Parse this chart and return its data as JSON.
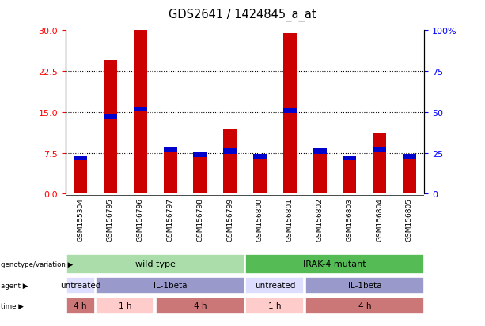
{
  "title": "GDS2641 / 1424845_a_at",
  "samples": [
    "GSM155304",
    "GSM156795",
    "GSM156796",
    "GSM156797",
    "GSM156798",
    "GSM156799",
    "GSM156800",
    "GSM156801",
    "GSM156802",
    "GSM156803",
    "GSM156804",
    "GSM156805"
  ],
  "count_values": [
    6.5,
    24.5,
    30.0,
    8.5,
    7.0,
    12.0,
    7.0,
    29.5,
    8.5,
    7.0,
    11.0,
    7.0
  ],
  "percentile_values": [
    22,
    47,
    52,
    27,
    24,
    26,
    23,
    51,
    26,
    22,
    27,
    23
  ],
  "ylim_left": [
    0,
    30
  ],
  "ylim_right": [
    0,
    100
  ],
  "yticks_left": [
    0,
    7.5,
    15,
    22.5,
    30
  ],
  "yticks_right": [
    0,
    25,
    50,
    75,
    100
  ],
  "bar_color": "#cc0000",
  "dot_color": "#0000cc",
  "genotype_groups": [
    {
      "label": "wild type",
      "start": 0,
      "end": 6,
      "color": "#aaddaa"
    },
    {
      "label": "IRAK-4 mutant",
      "start": 6,
      "end": 12,
      "color": "#55bb55"
    }
  ],
  "agent_groups": [
    {
      "label": "untreated",
      "start": 0,
      "end": 1,
      "color": "#ddddff"
    },
    {
      "label": "IL-1beta",
      "start": 1,
      "end": 6,
      "color": "#9999cc"
    },
    {
      "label": "untreated",
      "start": 6,
      "end": 8,
      "color": "#ddddff"
    },
    {
      "label": "IL-1beta",
      "start": 8,
      "end": 12,
      "color": "#9999cc"
    }
  ],
  "time_groups": [
    {
      "label": "4 h",
      "start": 0,
      "end": 1,
      "color": "#cc7777"
    },
    {
      "label": "1 h",
      "start": 1,
      "end": 3,
      "color": "#ffcccc"
    },
    {
      "label": "4 h",
      "start": 3,
      "end": 6,
      "color": "#cc7777"
    },
    {
      "label": "1 h",
      "start": 6,
      "end": 8,
      "color": "#ffcccc"
    },
    {
      "label": "4 h",
      "start": 8,
      "end": 12,
      "color": "#cc7777"
    }
  ],
  "legend_count_color": "#cc0000",
  "legend_percentile_color": "#0000cc",
  "row_labels": [
    "genotype/variation",
    "agent",
    "time"
  ],
  "sample_bg_color": "#cccccc",
  "bar_width": 0.45
}
